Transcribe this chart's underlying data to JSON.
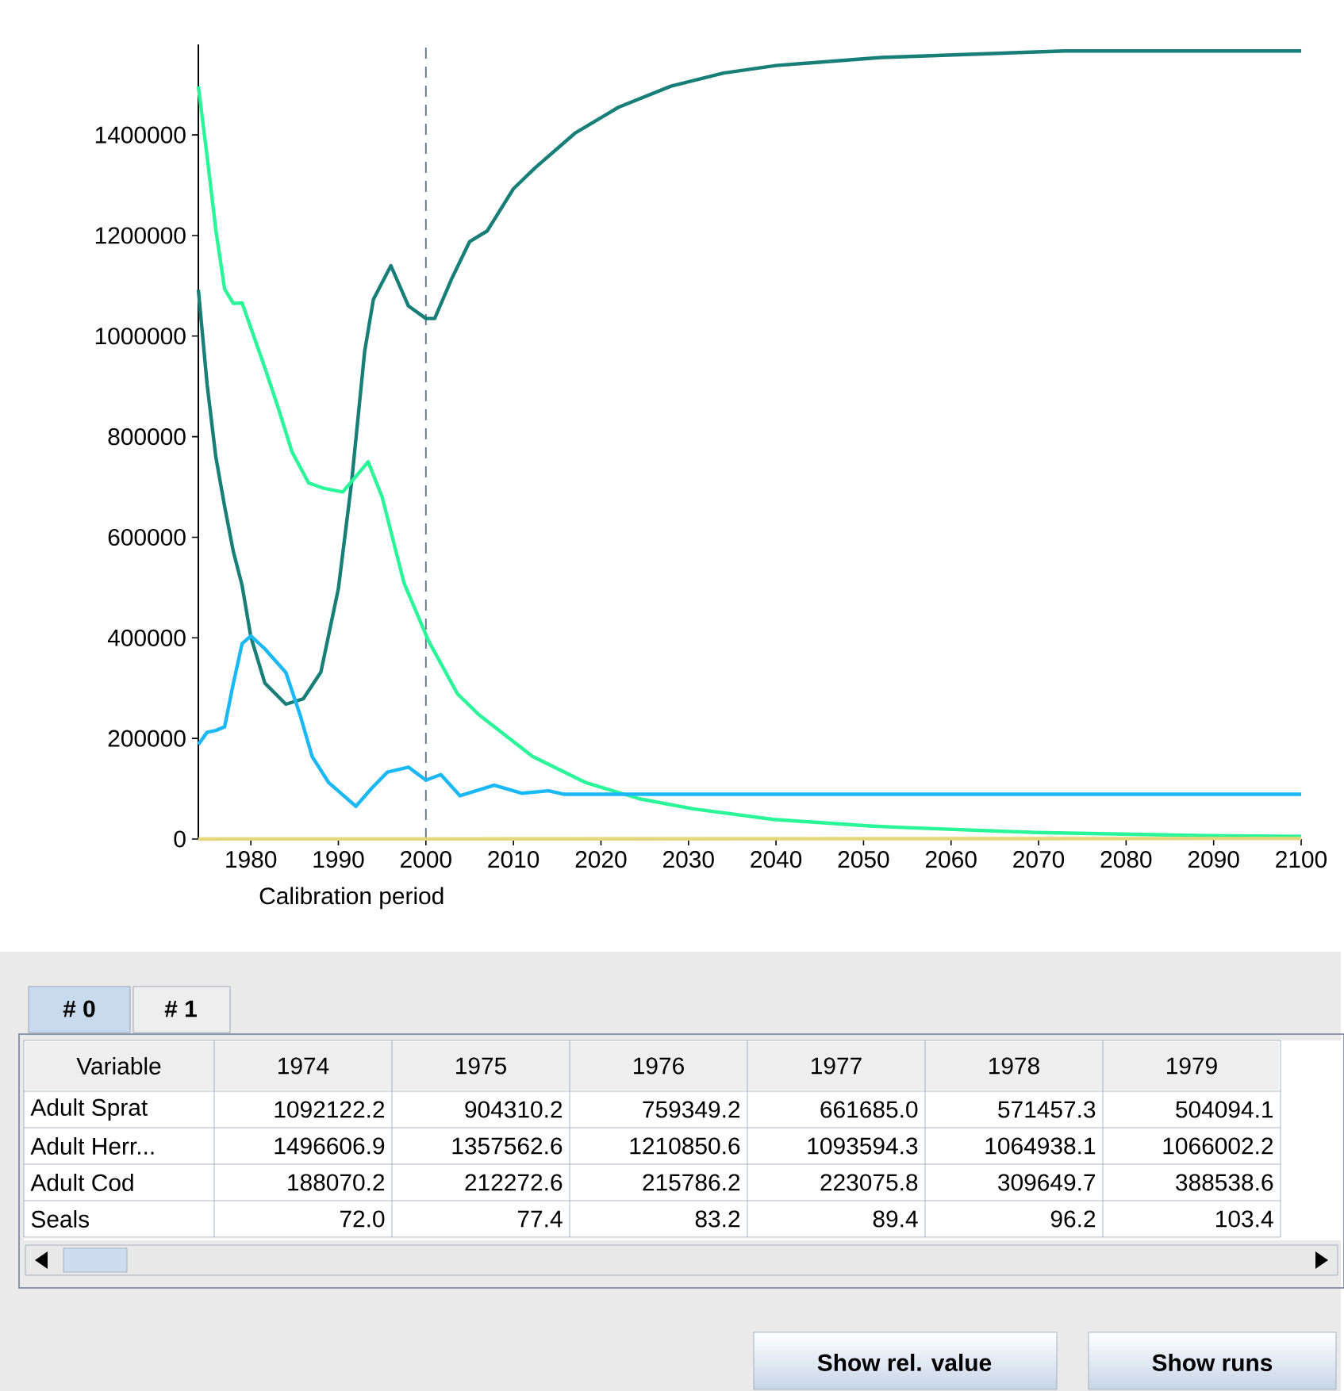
{
  "chart_data": {
    "type": "line",
    "xlim": [
      1974,
      2100
    ],
    "ylim": [
      0,
      1580000
    ],
    "xticks": [
      1980,
      1990,
      2000,
      2010,
      2020,
      2030,
      2040,
      2050,
      2060,
      2070,
      2080,
      2090,
      2100
    ],
    "yticks": [
      0,
      200000,
      400000,
      600000,
      800000,
      1000000,
      1200000,
      1400000
    ],
    "grid": false,
    "marker": "none",
    "line_style": "solid",
    "ref_lines": [
      {
        "axis": "x",
        "value": 2000,
        "label": "Calibration period",
        "color": "#6a7a8c",
        "line_style": "dashed"
      }
    ],
    "annotations": [
      "# 0",
      "# 1",
      "Variable",
      "1974",
      "1975",
      "1976",
      "1977",
      "1978",
      "1979",
      "Adult Sprat",
      "1092122.2",
      "904310.2",
      "759349.2",
      "661685.0",
      "571457.3",
      "504094.1",
      "Adult Herr...",
      "1496606.9",
      "1357562.6",
      "1210850.6",
      "1093594.3",
      "1064938.1",
      "1066002.2",
      "Adult Cod",
      "188070.2",
      "212272.6",
      "215786.2",
      "223075.8",
      "309649.7",
      "388538.6",
      "Seals",
      "72.0",
      "77.4",
      "83.2",
      "89.4",
      "96.2",
      "103.4",
      "Show rel. value",
      "Show runs"
    ],
    "series": [
      {
        "color": "#177f78",
        "x": [
          1974,
          1975,
          1976,
          1977,
          1978,
          1979,
          1980,
          1981.6,
          1984,
          1986,
          1988,
          1990,
          1991.5,
          1993,
          1994,
          1996,
          1998,
          2000,
          2001,
          2003,
          2005,
          2007,
          2010,
          2012.5,
          2017,
          2022,
          2028,
          2034,
          2040,
          2052,
          2073,
          2100
        ],
        "values": [
          1092122.2,
          904310.2,
          759349.2,
          661685.0,
          571457.3,
          504094.1,
          402000,
          310000,
          268000,
          279000,
          332000,
          498000,
          708000,
          969000,
          1073000,
          1140000,
          1060000,
          1035000,
          1035000,
          1116000,
          1188000,
          1209000,
          1293000,
          1335000,
          1403000,
          1455000,
          1497000,
          1523000,
          1538000,
          1554000,
          1567000,
          1567000
        ]
      },
      {
        "color": "#2af598",
        "x": [
          1974,
          1975,
          1976,
          1977,
          1978,
          1979,
          1981.6,
          1983,
          1984.7,
          1986.6,
          1988.4,
          1990.5,
          1993.4,
          1995,
          1997.5,
          2000.3,
          2003.6,
          2006,
          2012.2,
          2018.3,
          2024.4,
          2030.5,
          2039.7,
          2050.7,
          2054.4,
          2069.7,
          2088,
          2100
        ],
        "values": [
          1496606.9,
          1357562.6,
          1210850.6,
          1093594.3,
          1064938.1,
          1066002.2,
          937000,
          864000,
          770000,
          708000,
          697000,
          690000,
          750000,
          680000,
          509000,
          394000,
          289000,
          248000,
          164000,
          112000,
          80000,
          60000,
          39000,
          26000,
          23000,
          13000,
          7000,
          5000
        ]
      },
      {
        "color": "#1ab8f5",
        "x": [
          1974,
          1975,
          1976,
          1977,
          1978,
          1979,
          1980,
          1981.6,
          1984,
          1985.6,
          1987,
          1988.9,
          1992,
          1993.8,
          1995.6,
          1998,
          2000,
          2001.7,
          2003.9,
          2007.8,
          2011,
          2014,
          2015.8,
          2100
        ],
        "values": [
          188070.2,
          212272.6,
          215786.2,
          223075.8,
          309649.7,
          388538.6,
          404000,
          378000,
          331000,
          248000,
          164000,
          112000,
          65000,
          101000,
          133000,
          143000,
          117000,
          128000,
          86000,
          107000,
          91000,
          96000,
          89000,
          89000
        ]
      },
      {
        "color": "#e6d67a",
        "x": [
          1974,
          1975,
          1976,
          1977,
          1978,
          1979,
          2100
        ],
        "values": [
          72.0,
          77.4,
          83.2,
          89.4,
          96.2,
          103.4,
          1000
        ]
      }
    ]
  }
}
